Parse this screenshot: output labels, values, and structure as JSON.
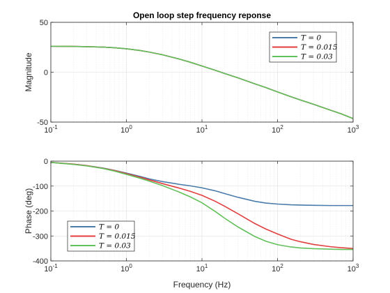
{
  "title": "Open loop step frequency reponse",
  "chart_data": [
    {
      "type": "line",
      "title": "Open loop step frequency reponse",
      "xlabel": "",
      "ylabel": "Magnitude",
      "xscale": "log",
      "xlim": [
        0.1,
        1000
      ],
      "ylim": [
        -50,
        50
      ],
      "xticks": [
        0.1,
        1,
        10,
        100,
        1000
      ],
      "xtick_labels": [
        {
          "base": "10",
          "exp": "-1"
        },
        {
          "base": "10",
          "exp": "0"
        },
        {
          "base": "10",
          "exp": "1"
        },
        {
          "base": "10",
          "exp": "2"
        },
        {
          "base": "10",
          "exp": "3"
        }
      ],
      "yticks": [
        -50,
        0,
        50
      ],
      "ytick_labels": [
        "-50",
        "0",
        "50"
      ],
      "grid": true,
      "legend": "top-right",
      "x": [
        0.1,
        0.2,
        0.3,
        0.5,
        0.7,
        1,
        1.5,
        2,
        3,
        5,
        7,
        10,
        15,
        20,
        30,
        50,
        70,
        100,
        150,
        200,
        300,
        500,
        700,
        1000
      ],
      "series": [
        {
          "name": "T = 0",
          "color": "#4a7cab",
          "values": [
            26,
            25.8,
            25.6,
            25.1,
            24.5,
            23.5,
            21.8,
            20.2,
            17.5,
            13.2,
            10,
            6.2,
            1.9,
            -1.3,
            -5.7,
            -11.6,
            -15.4,
            -19.8,
            -24.6,
            -27.8,
            -32.2,
            -38,
            -41.8,
            -46.5
          ]
        },
        {
          "name": "T = 0.015",
          "color": "#e23e3e",
          "values": [
            26,
            25.8,
            25.6,
            25.1,
            24.5,
            23.5,
            21.8,
            20.2,
            17.5,
            13.2,
            10,
            6.2,
            1.9,
            -1.3,
            -5.7,
            -11.6,
            -15.4,
            -19.8,
            -24.6,
            -27.8,
            -32.2,
            -38,
            -41.8,
            -46.5
          ]
        },
        {
          "name": "T = 0.03",
          "color": "#62c05a",
          "values": [
            26,
            25.8,
            25.6,
            25.1,
            24.5,
            23.5,
            21.8,
            20.2,
            17.5,
            13.2,
            10,
            6.2,
            1.9,
            -1.3,
            -5.7,
            -11.6,
            -15.4,
            -19.8,
            -24.6,
            -27.8,
            -32.2,
            -38,
            -41.8,
            -46.5
          ]
        }
      ]
    },
    {
      "type": "line",
      "title": "",
      "xlabel": "Frequency (Hz)",
      "ylabel": "Phase (deg)",
      "xscale": "log",
      "xlim": [
        0.1,
        1000
      ],
      "ylim": [
        -400,
        0
      ],
      "xticks": [
        0.1,
        1,
        10,
        100,
        1000
      ],
      "xtick_labels": [
        {
          "base": "10",
          "exp": "-1"
        },
        {
          "base": "10",
          "exp": "0"
        },
        {
          "base": "10",
          "exp": "1"
        },
        {
          "base": "10",
          "exp": "2"
        },
        {
          "base": "10",
          "exp": "3"
        }
      ],
      "yticks": [
        -400,
        -300,
        -200,
        -100,
        0
      ],
      "ytick_labels": [
        "-400",
        "-300",
        "-200",
        "-100",
        "0"
      ],
      "grid": true,
      "legend": "bottom-left",
      "x": [
        0.1,
        0.2,
        0.3,
        0.5,
        0.7,
        1,
        1.5,
        2,
        3,
        5,
        7,
        10,
        15,
        20,
        30,
        50,
        70,
        100,
        150,
        200,
        300,
        500,
        700,
        1000
      ],
      "series": [
        {
          "name": "T = 0",
          "color": "#4a7cab",
          "values": [
            -5,
            -12,
            -18,
            -28,
            -37,
            -48,
            -61,
            -71,
            -82,
            -93,
            -99,
            -107,
            -119,
            -130,
            -145,
            -161,
            -168,
            -172,
            -175,
            -176,
            -177,
            -178,
            -178,
            -178
          ]
        },
        {
          "name": "T = 0.015",
          "color": "#e23e3e",
          "values": [
            -5,
            -12,
            -18,
            -29,
            -38,
            -50,
            -64,
            -75,
            -90,
            -108,
            -121,
            -137,
            -161,
            -181,
            -211,
            -250,
            -272,
            -292,
            -313,
            -323,
            -334,
            -343,
            -347,
            -350
          ]
        },
        {
          "name": "T = 0.03",
          "color": "#62c05a",
          "values": [
            -5,
            -13,
            -19,
            -30,
            -40,
            -53,
            -68,
            -80,
            -98,
            -124,
            -143,
            -167,
            -202,
            -229,
            -264,
            -302,
            -321,
            -335,
            -344,
            -348,
            -351,
            -353,
            -354,
            -354
          ]
        }
      ]
    }
  ]
}
